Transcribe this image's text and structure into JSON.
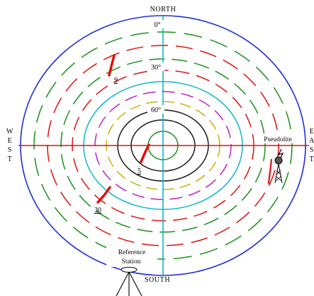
{
  "directions": {
    "north": "NORTH",
    "south": "SOUTH",
    "west": "WEST",
    "east": "EAST"
  },
  "elevation_labels": {
    "zero": "0°",
    "thirty": "30°",
    "sixty": "60°"
  },
  "satellites": [
    {
      "prn": "9"
    },
    {
      "prn": "5"
    },
    {
      "prn": "30"
    }
  ],
  "pseudolite": {
    "label": "Pseudolite"
  },
  "reference_station": {
    "line1": "Reference",
    "line2": "Station"
  },
  "colors": {
    "outer_ring": "#1f2fd6",
    "horizontal_axis": "#e01010",
    "vertical_axis": "#10b8c8",
    "track": "#e01010",
    "rings": [
      "#1a8f1a",
      "#1a1a1a",
      "#c8b010",
      "#c020c0",
      "#10b8c8",
      "#1a8f1a",
      "#e01010",
      "#1a8f1a",
      "#e01010",
      "#1a8f1a"
    ]
  }
}
